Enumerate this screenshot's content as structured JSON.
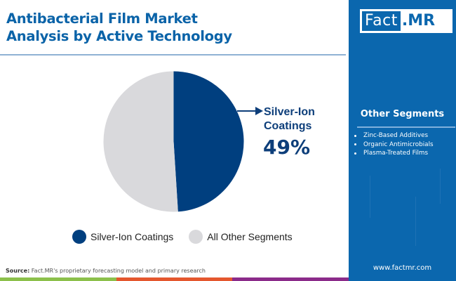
{
  "header": {
    "title_line1": "Antibacterial Film Market",
    "title_line2": "Analysis by Active Technology"
  },
  "brand": {
    "logo_left": "Fact",
    "logo_right": ".MR",
    "website": "www.factmr.com",
    "colors": {
      "primary_blue": "#0b67ae",
      "title_blue": "#0a63a8",
      "dark_navy": "#003f7f",
      "light_grey": "#d9d9dc"
    }
  },
  "callout": {
    "label_line1": "Silver-Ion",
    "label_line2": "Coatings",
    "value": "49%"
  },
  "legend": {
    "items": [
      {
        "label": "Silver-Ion Coatings",
        "color": "#003f7f"
      },
      {
        "label": "All Other Segments",
        "color": "#d9d9dc"
      }
    ]
  },
  "sidebar": {
    "title": "Other Segments",
    "items": [
      {
        "label": "Zinc-Based Additives"
      },
      {
        "label": "Organic Antimicrobials"
      },
      {
        "label": "Plasma-Treated Films"
      }
    ]
  },
  "footer": {
    "source_label": "Source:",
    "source_text": " Fact.MR's proprietary forecasting model and primary research",
    "bar_colors": [
      "#8cc04b",
      "#e4572e",
      "#8b2b8a"
    ]
  },
  "chart_data": {
    "type": "pie",
    "title": "Antibacterial Film Market Analysis by Active Technology",
    "categories": [
      "Silver-Ion Coatings",
      "All Other Segments"
    ],
    "values": [
      49,
      51
    ],
    "colors": [
      "#003f7f",
      "#d9d9dc"
    ],
    "start_angle_deg": 0,
    "direction": "clockwise",
    "annotations": [
      {
        "target": "Silver-Ion Coatings",
        "text": "Silver-Ion Coatings 49%"
      }
    ],
    "legend_position": "bottom"
  }
}
